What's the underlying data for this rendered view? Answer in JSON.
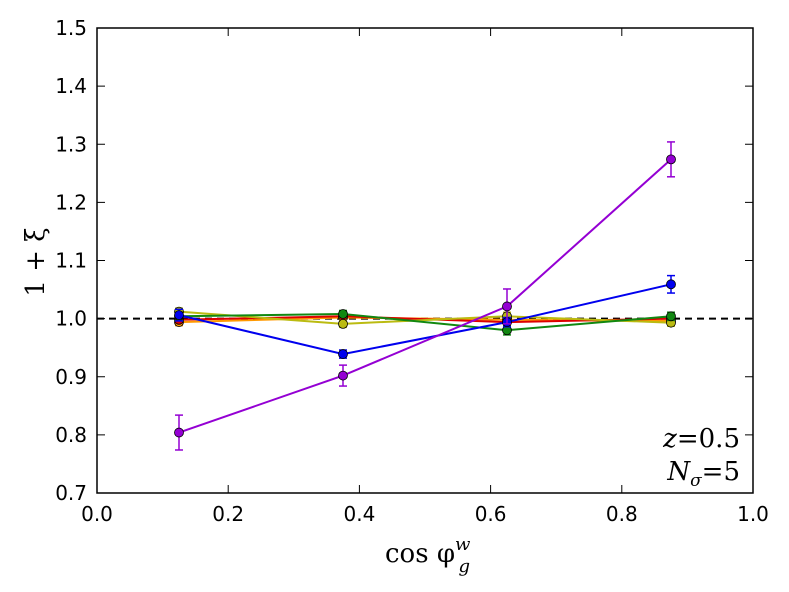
{
  "chart_data": {
    "type": "line",
    "xlabel": "cos φ",
    "xlabel_sup": "w",
    "xlabel_sub": "g",
    "ylabel": "1 + ξ",
    "xlim": [
      0.0,
      1.0
    ],
    "ylim": [
      0.7,
      1.5
    ],
    "xticks": [
      "0.0",
      "0.2",
      "0.4",
      "0.6",
      "0.8",
      "1.0"
    ],
    "yticks": [
      "0.7",
      "0.8",
      "0.9",
      "1.0",
      "1.1",
      "1.2",
      "1.3",
      "1.4",
      "1.5"
    ],
    "x": [
      0.125,
      0.375,
      0.625,
      0.875
    ],
    "reference_line": 1.0,
    "annotations": {
      "z_label": "z",
      "z_value": "=0.5",
      "n_label": "N",
      "n_sub": "σ",
      "n_value": "=5"
    },
    "series": [
      {
        "name": "orange",
        "color": "#ff9900",
        "values": [
          0.994,
          1.002,
          0.998,
          0.996
        ],
        "errors": [
          0.006,
          0.006,
          0.008,
          0.006
        ]
      },
      {
        "name": "red",
        "color": "#dd0000",
        "values": [
          0.998,
          1.004,
          0.994,
          1.0
        ],
        "errors": [
          0.005,
          0.005,
          0.006,
          0.006
        ]
      },
      {
        "name": "yellow",
        "color": "#bbbb11",
        "values": [
          1.012,
          0.991,
          1.004,
          0.993
        ],
        "errors": [
          0.006,
          0.006,
          0.007,
          0.006
        ]
      },
      {
        "name": "green",
        "color": "#118811",
        "values": [
          1.004,
          1.008,
          0.98,
          1.004
        ],
        "errors": [
          0.007,
          0.006,
          0.008,
          0.007
        ]
      },
      {
        "name": "blue",
        "color": "#0000ee",
        "values": [
          1.006,
          0.939,
          0.994,
          1.059
        ],
        "errors": [
          0.01,
          0.007,
          0.008,
          0.015
        ]
      },
      {
        "name": "purple",
        "color": "#9400d3",
        "values": [
          0.804,
          0.902,
          1.021,
          1.274
        ],
        "errors": [
          0.03,
          0.018,
          0.03,
          0.03
        ]
      }
    ]
  }
}
